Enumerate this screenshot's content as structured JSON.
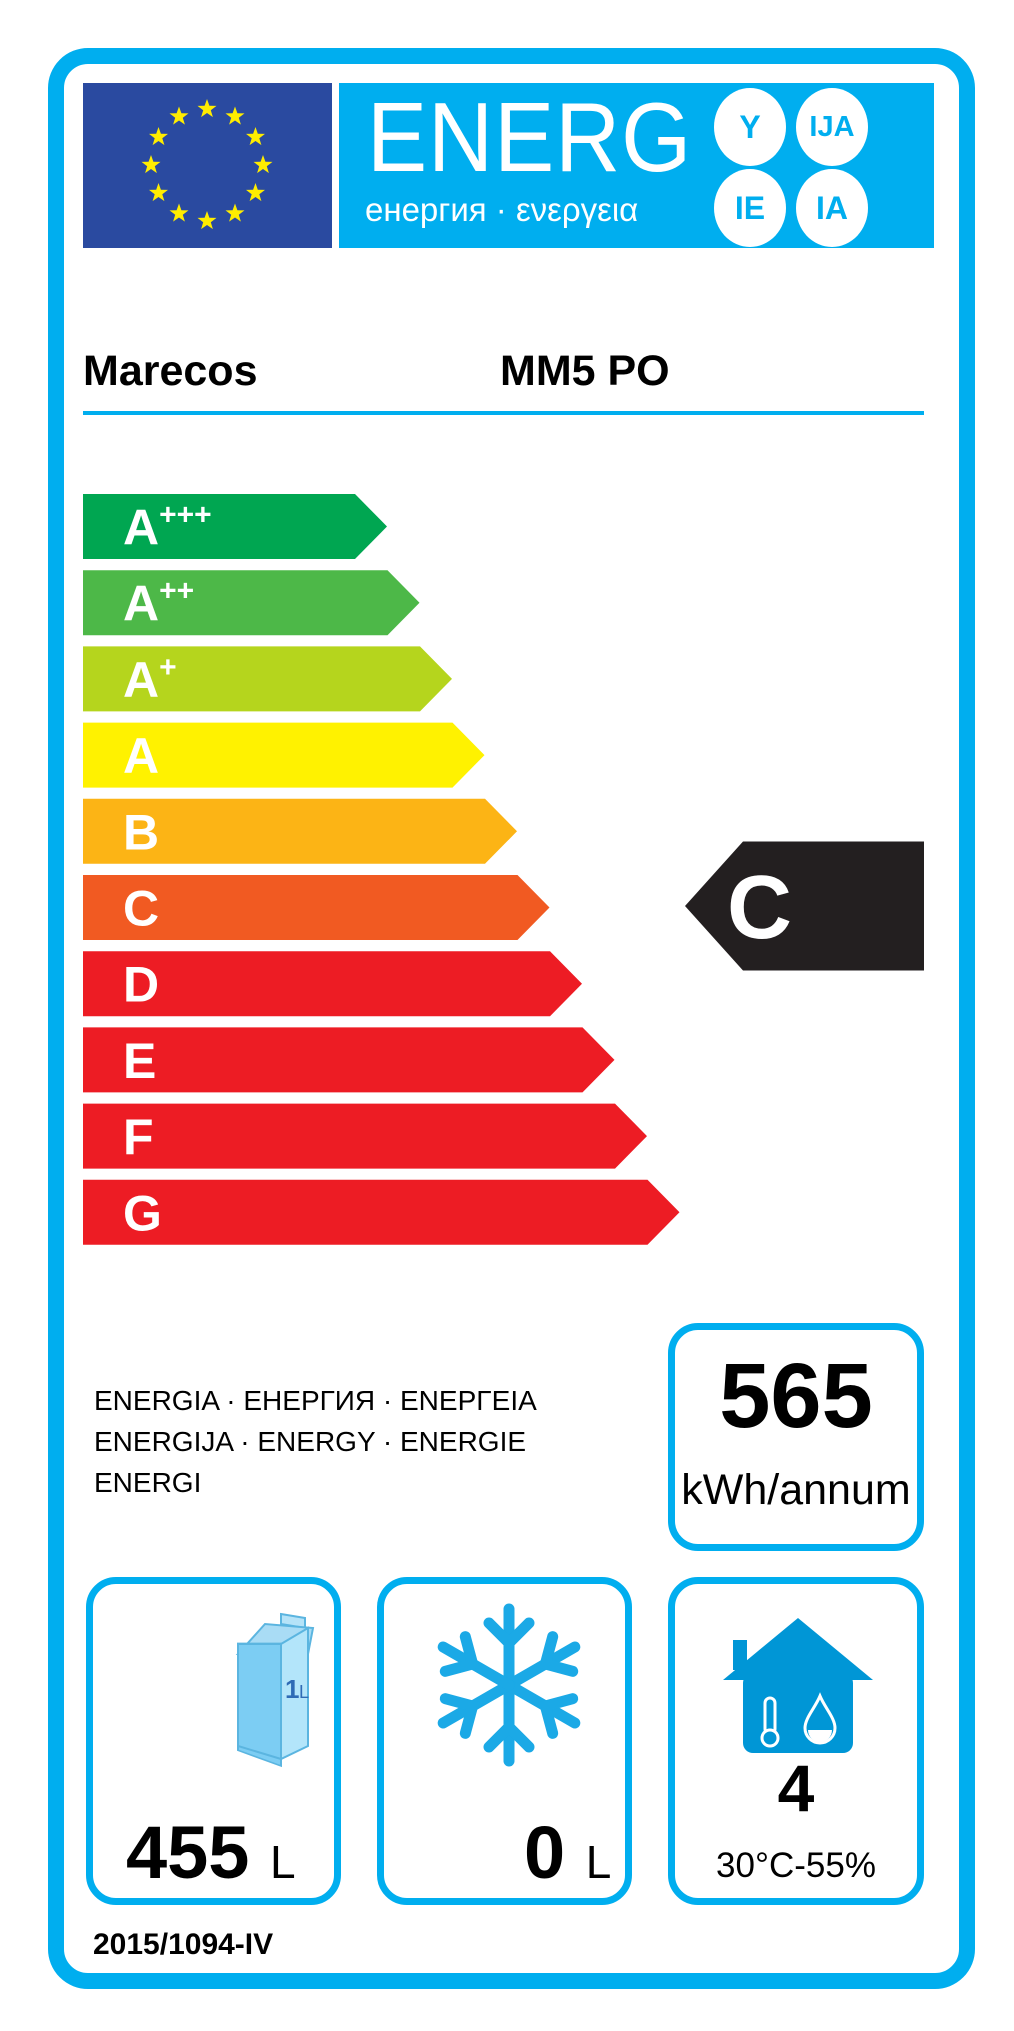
{
  "header": {
    "title": "ENERG",
    "subtitle": "енергия · ενεργεια",
    "suffixes": [
      "Y",
      "IJA",
      "IE",
      "IA"
    ],
    "eu_flag_icon": "eu-flag-stars",
    "colors": {
      "eu_blue": "#2a4aa0",
      "label_blue": "#00aeef",
      "star_yellow": "#ffed00"
    }
  },
  "supplier": "Marecos",
  "model": "MM5 PO",
  "scale": {
    "classes": [
      {
        "base": "A",
        "sup": "+++",
        "color": "#00a651"
      },
      {
        "base": "A",
        "sup": "++",
        "color": "#4db848"
      },
      {
        "base": "A",
        "sup": "+",
        "color": "#b5d51d"
      },
      {
        "base": "A",
        "sup": "",
        "color": "#fff200"
      },
      {
        "base": "B",
        "sup": "",
        "color": "#fcb415"
      },
      {
        "base": "C",
        "sup": "",
        "color": "#f15a22"
      },
      {
        "base": "D",
        "sup": "",
        "color": "#ed1c24"
      },
      {
        "base": "E",
        "sup": "",
        "color": "#ed1c24"
      },
      {
        "base": "F",
        "sup": "",
        "color": "#ed1c24"
      },
      {
        "base": "G",
        "sup": "",
        "color": "#ed1c24"
      }
    ],
    "rating": "C",
    "rating_index": 5,
    "rating_color": "#231f20"
  },
  "energy_words": [
    "ENERGIA · ЕНЕРГИЯ · ΕΝΕΡΓΕΙΑ",
    "ENERGIJA · ENERGY · ENERGIE",
    "ENERGI"
  ],
  "consumption": {
    "value": "565",
    "unit": "kWh/annum"
  },
  "fresh_volume": {
    "icon": "milk-carton",
    "carton_label": "1",
    "carton_unit": "L",
    "value": "455",
    "unit": "L"
  },
  "frozen_volume": {
    "icon": "snowflake",
    "value": "0",
    "unit": "L"
  },
  "climate": {
    "icon": "house-thermometer-drop",
    "value": "4",
    "condition": "30°C-55%"
  },
  "regulation": "2015/1094-IV"
}
